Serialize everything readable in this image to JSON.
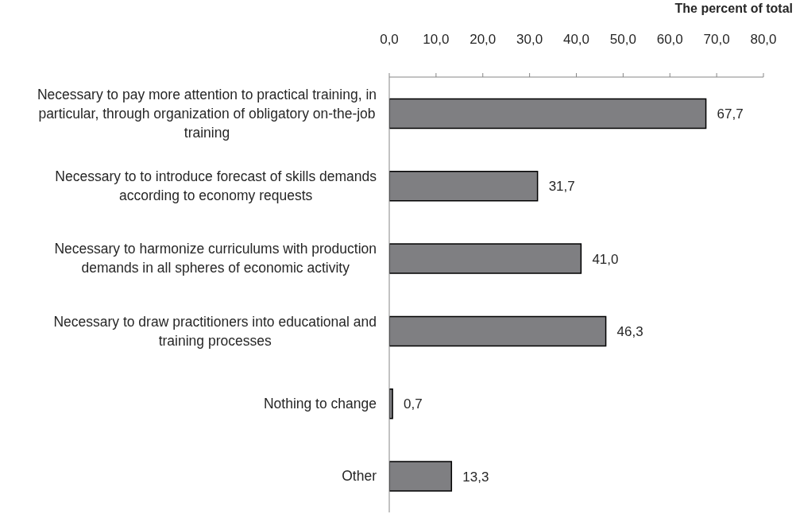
{
  "chart_data": {
    "type": "bar",
    "orientation": "horizontal",
    "xlabel": "The percent of total",
    "categories": [
      "Necessary to pay more attention to practical training, in particular, through organization of obligatory on-the-job training",
      "Necessary to to introduce forecast of skills demands according to economy requests",
      "Necessary to harmonize curriculums with production demands in all spheres of economic activity",
      "Necessary to draw practitioners into educational and training processes",
      "Nothing to change",
      "Other"
    ],
    "values": [
      67.7,
      31.7,
      41.0,
      46.3,
      0.7,
      13.3
    ],
    "value_labels": [
      "67,7",
      "31,7",
      "41,0",
      "46,3",
      "0,7",
      "13,3"
    ],
    "color": "#7f7f82",
    "xlim": [
      0,
      80
    ],
    "xticks": [
      {
        "value": 0,
        "label": "0,0"
      },
      {
        "value": 10,
        "label": "10,0"
      },
      {
        "value": 20,
        "label": "20,0"
      },
      {
        "value": 30,
        "label": "30,0"
      },
      {
        "value": 40,
        "label": "40,0"
      },
      {
        "value": 50,
        "label": "50,0"
      },
      {
        "value": 60,
        "label": "60,0"
      },
      {
        "value": 70,
        "label": "70,0"
      },
      {
        "value": 80,
        "label": "80,0"
      }
    ]
  }
}
